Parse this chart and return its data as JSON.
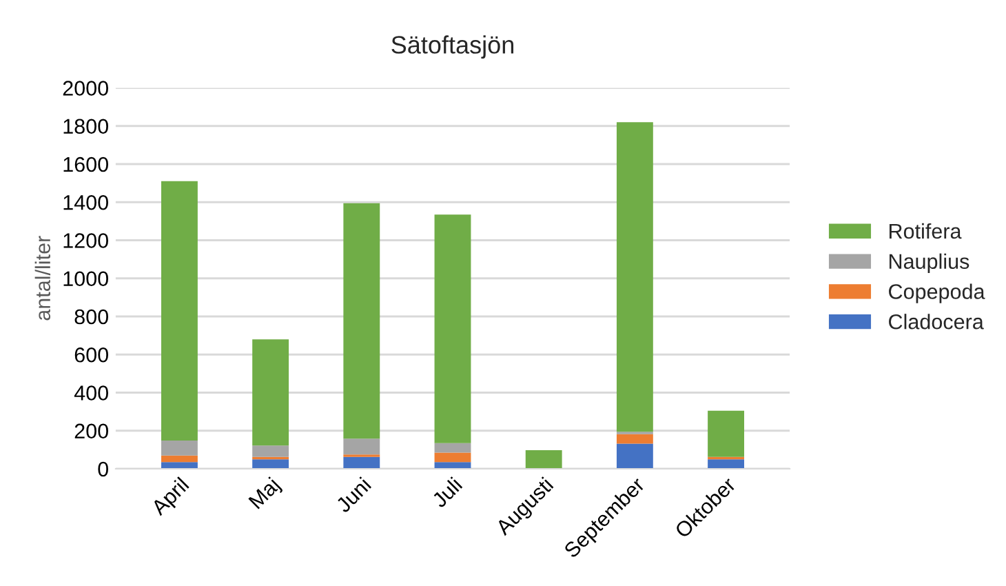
{
  "chart_data": {
    "type": "bar",
    "title": "Sätoftasjön",
    "ylabel": "antal/liter",
    "stacked": true,
    "categories": [
      "April",
      "Maj",
      "Juni",
      "Juli",
      "Augusti",
      "September",
      "Oktober"
    ],
    "series": [
      {
        "name": "Cladocera",
        "color": "#4472c4",
        "values": [
          35,
          50,
          62,
          35,
          0,
          132,
          50
        ]
      },
      {
        "name": "Copepoda",
        "color": "#ed7d31",
        "values": [
          35,
          12,
          13,
          50,
          0,
          50,
          12
        ]
      },
      {
        "name": "Nauplius",
        "color": "#a5a5a5",
        "values": [
          78,
          60,
          83,
          50,
          0,
          13,
          0
        ]
      },
      {
        "name": "Rotifera",
        "color": "#70ad47",
        "values": [
          1362,
          558,
          1237,
          1200,
          98,
          1625,
          243
        ]
      }
    ],
    "ylim": [
      0,
      2000
    ],
    "yticks": [
      0,
      200,
      400,
      600,
      800,
      1000,
      1200,
      1400,
      1600,
      1800,
      2000
    ],
    "grid": "y",
    "legend": "right"
  }
}
